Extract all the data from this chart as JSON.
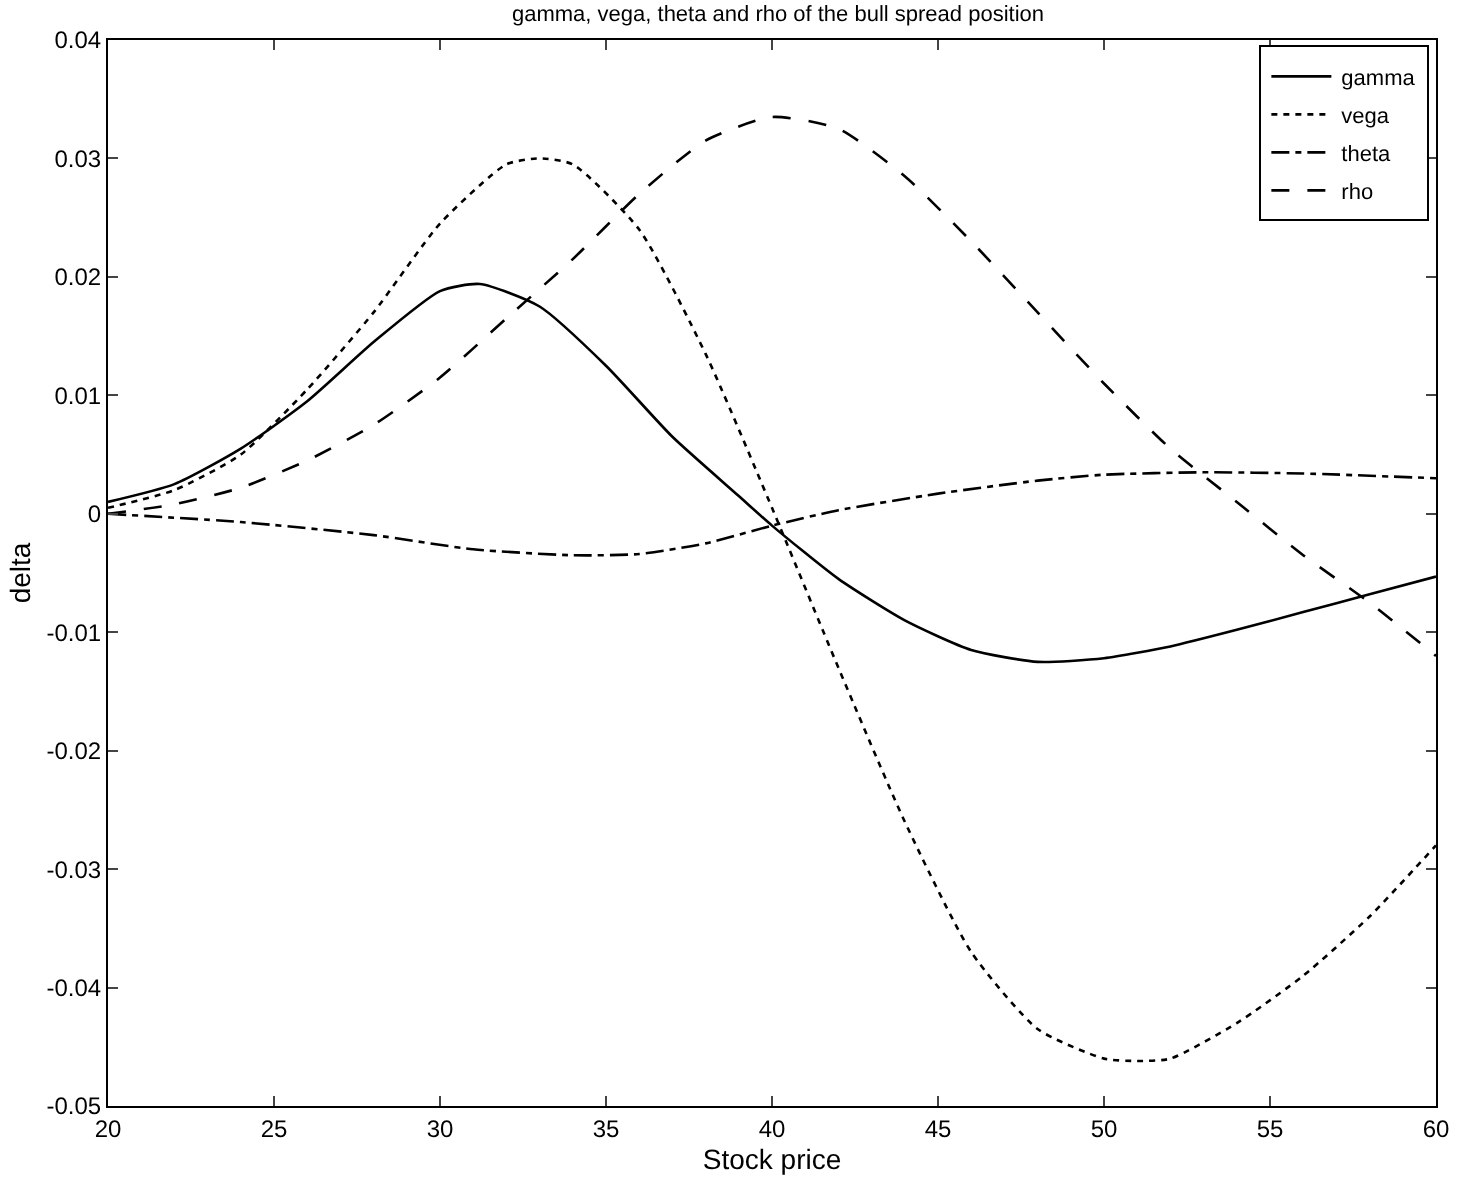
{
  "chart_data": {
    "type": "line",
    "title": "gamma, vega, theta and rho of the bull spread position",
    "xlabel": "Stock price",
    "ylabel": "delta",
    "xlim": [
      20,
      60
    ],
    "xticks": [
      20,
      25,
      30,
      35,
      40,
      45,
      50,
      55,
      60
    ],
    "ylim": [
      -0.05,
      0.04
    ],
    "yticks": [
      -0.05,
      -0.04,
      -0.03,
      -0.02,
      -0.01,
      0,
      0.01,
      0.02,
      0.03,
      0.04
    ],
    "grid": false,
    "legend": "top right",
    "marker": "none",
    "series": [
      {
        "name": "gamma",
        "color": "#000000",
        "line_style": "solid",
        "x": [
          20,
          22,
          24,
          26,
          28,
          30,
          31.2,
          33,
          35,
          37,
          39,
          40,
          42,
          44,
          46,
          48,
          50,
          52,
          54,
          56,
          58,
          60
        ],
        "values": [
          0.001,
          0.0025,
          0.0055,
          0.0095,
          0.0145,
          0.0188,
          0.0194,
          0.0175,
          0.0125,
          0.0065,
          0.0015,
          -0.001,
          -0.0055,
          -0.009,
          -0.0115,
          -0.0125,
          -0.0122,
          -0.0112,
          -0.0098,
          -0.0083,
          -0.0068,
          -0.0053
        ]
      },
      {
        "name": "vega",
        "color": "#000000",
        "line_style": "dotted",
        "x": [
          20,
          22,
          24,
          26,
          28,
          30,
          32,
          33,
          34,
          36,
          38,
          40,
          42,
          44,
          46,
          48,
          50,
          51,
          52,
          54,
          56,
          58,
          60
        ],
        "values": [
          0.0005,
          0.002,
          0.005,
          0.0105,
          0.017,
          0.0245,
          0.0295,
          0.03,
          0.0295,
          0.024,
          0.0135,
          0.0005,
          -0.013,
          -0.026,
          -0.037,
          -0.0435,
          -0.046,
          -0.0462,
          -0.046,
          -0.043,
          -0.039,
          -0.034,
          -0.028
        ]
      },
      {
        "name": "theta",
        "color": "#000000",
        "line_style": "dashdot",
        "x": [
          20,
          24,
          28,
          31,
          34,
          36,
          38,
          40,
          42,
          45,
          48,
          50,
          53,
          56,
          60
        ],
        "values": [
          0,
          -0.0007,
          -0.0018,
          -0.003,
          -0.0035,
          -0.0034,
          -0.0025,
          -0.001,
          0.0003,
          0.0017,
          0.0028,
          0.0033,
          0.0035,
          0.0034,
          0.003
        ]
      },
      {
        "name": "rho",
        "color": "#000000",
        "line_style": "dashed",
        "x": [
          20,
          22,
          24,
          26,
          28,
          30,
          32,
          34,
          36,
          38,
          40,
          42,
          44,
          46,
          48,
          50,
          52,
          54,
          56,
          58,
          60
        ],
        "values": [
          0,
          0.0008,
          0.0022,
          0.0045,
          0.0075,
          0.0115,
          0.0165,
          0.0215,
          0.027,
          0.0315,
          0.0335,
          0.0325,
          0.0285,
          0.023,
          0.017,
          0.011,
          0.0055,
          0.001,
          -0.0035,
          -0.0075,
          -0.012
        ]
      }
    ]
  }
}
